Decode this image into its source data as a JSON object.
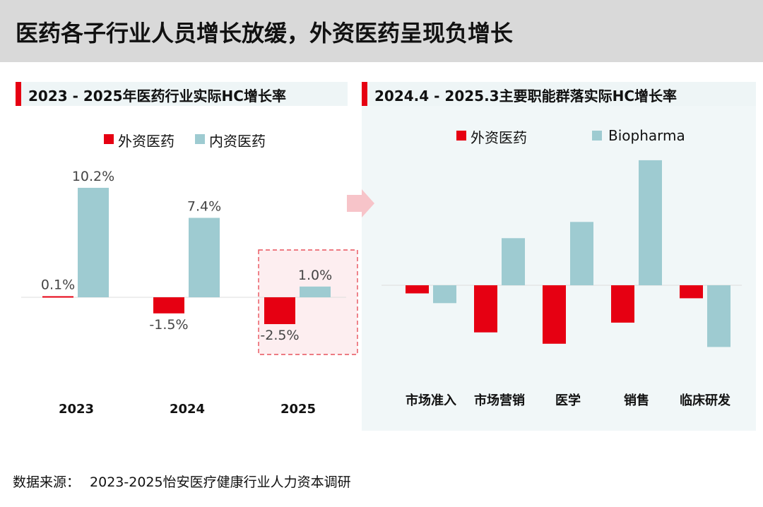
{
  "header": {
    "title": "医药各子行业人员增长放缓，外资医药呈现负增长"
  },
  "left_panel": {
    "title": "2023 - 2025年医药行业实际HC增长率"
  },
  "right_panel": {
    "title": "2024.4 - 2025.3主要职能群落实际HC增长率"
  },
  "source": {
    "label": "数据来源：",
    "text": "2023-2025怡安医疗健康行业人力资本调研"
  },
  "colors": {
    "foreign": "#e60012",
    "domestic": "#9ecbd1",
    "highlight_border": "#e8525c",
    "highlight_fill": "#fdeef0",
    "arrow": "#f7c4c9"
  },
  "chart_data": [
    {
      "type": "bar",
      "title": "2023 - 2025年医药行业实际HC增长率",
      "categories": [
        "2023",
        "2024",
        "2025"
      ],
      "series": [
        {
          "name": "外资医药",
          "values": [
            0.1,
            -1.5,
            -2.5
          ],
          "labels": [
            "0.1%",
            "-1.5%",
            "-2.5%"
          ]
        },
        {
          "name": "内资医药",
          "values": [
            10.2,
            7.4,
            1.0
          ],
          "labels": [
            "10.2%",
            "7.4%",
            "1.0%"
          ]
        }
      ],
      "ylim": [
        -5,
        12
      ],
      "highlight_category": "2025",
      "legend": "top-center",
      "grid": false
    },
    {
      "type": "bar",
      "title": "2024.4 - 2025.3主要职能群落实际HC增长率",
      "categories": [
        "市场准入",
        "市场营销",
        "医学",
        "销售",
        "临床研发"
      ],
      "series": [
        {
          "name": "外资医药",
          "values": [
            -0.5,
            -2.9,
            -3.6,
            -2.3,
            -0.8
          ]
        },
        {
          "name": "Biopharma",
          "values": [
            -1.1,
            2.9,
            3.9,
            7.7,
            -3.8
          ]
        }
      ],
      "ylim": [
        -6,
        8
      ],
      "legend": "top-center",
      "grid": false
    }
  ]
}
